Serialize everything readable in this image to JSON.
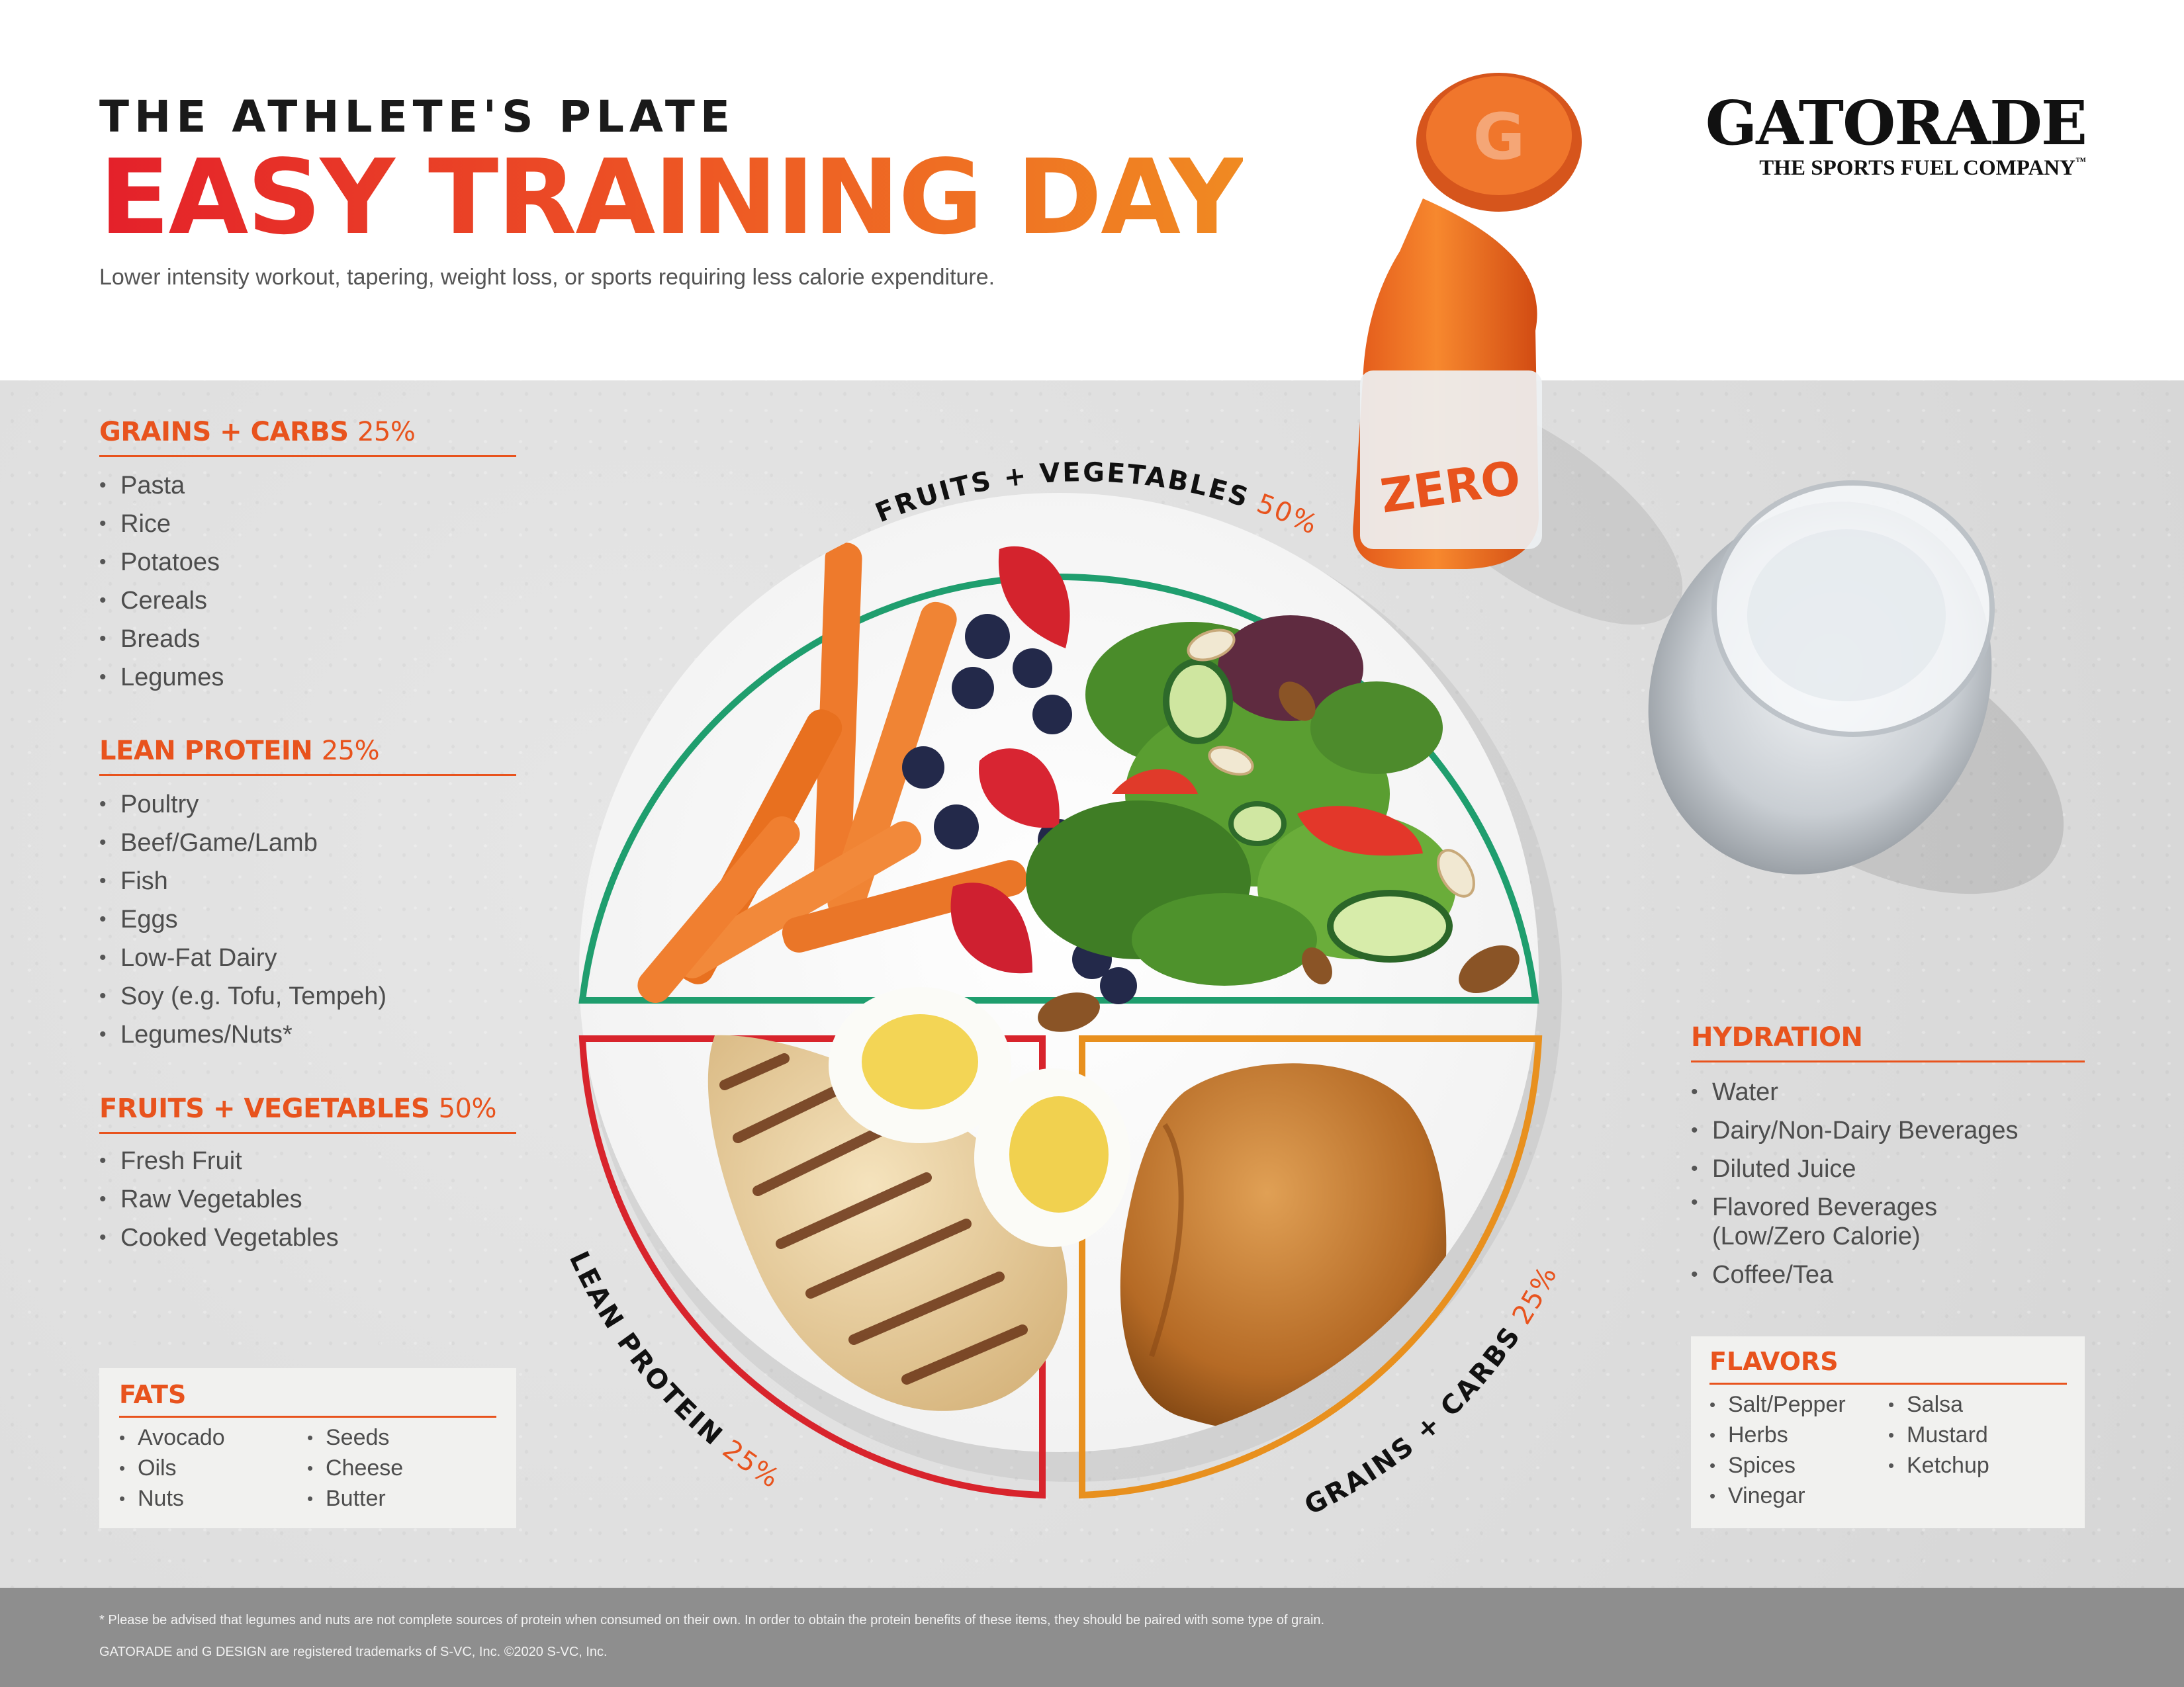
{
  "header": {
    "kicker": "THE ATHLETE'S PLATE",
    "headline": "EASY TRAINING DAY",
    "subline": "Lower intensity workout, tapering, weight loss, or sports requiring less calorie expenditure."
  },
  "brand": {
    "name": "GATORADE",
    "tagline": "THE SPORTS FUEL COMPANY",
    "tm": "™"
  },
  "bottle": {
    "cap_logo": "G",
    "label": "ZERO"
  },
  "plate": {
    "fruits_label": "FRUITS + VEGETABLES",
    "fruits_pct": "50%",
    "protein_label": "LEAN PROTEIN",
    "protein_pct": "25%",
    "grains_label": "GRAINS + CARBS",
    "grains_pct": "25%"
  },
  "sections": {
    "grains": {
      "title": "GRAINS + CARBS",
      "pct": "25%",
      "items": [
        "Pasta",
        "Rice",
        "Potatoes",
        "Cereals",
        "Breads",
        "Legumes"
      ]
    },
    "protein": {
      "title": "LEAN PROTEIN",
      "pct": "25%",
      "items": [
        "Poultry",
        "Beef/Game/Lamb",
        "Fish",
        "Eggs",
        "Low-Fat Dairy",
        "Soy (e.g. Tofu, Tempeh)",
        "Legumes/Nuts*"
      ]
    },
    "fruits": {
      "title": "FRUITS + VEGETABLES",
      "pct": "50%",
      "items": [
        "Fresh Fruit",
        "Raw Vegetables",
        "Cooked Vegetables"
      ]
    },
    "fats": {
      "title": "FATS",
      "col1": [
        "Avocado",
        "Oils",
        "Nuts"
      ],
      "col2": [
        "Seeds",
        "Cheese",
        "Butter"
      ]
    },
    "hydration": {
      "title": "HYDRATION",
      "items": [
        "Water",
        "Dairy/Non-Dairy Beverages",
        "Diluted Juice"
      ],
      "flavored_line1": "Flavored Beverages",
      "flavored_line2": "(Low/Zero Calorie)",
      "last": "Coffee/Tea"
    },
    "flavors": {
      "title": "FLAVORS",
      "col1": [
        "Salt/Pepper",
        "Herbs",
        "Spices",
        "Vinegar"
      ],
      "col2": [
        "Salsa",
        "Mustard",
        "Ketchup"
      ]
    }
  },
  "footer": {
    "note": "* Please be advised that legumes and nuts are not complete sources of protein when consumed on their own. In order to obtain the protein benefits of these items, they should be paired with some type of grain.",
    "trademark": "GATORADE and G DESIGN are registered trademarks of S-VC, Inc. ©2020 S-VC, Inc."
  },
  "colors": {
    "accent": "#e8531d",
    "fruits_ring": "#1f9e6e",
    "protein_ring": "#d8242c",
    "grains_ring": "#e8901e",
    "footer_bg": "#8e8e8e"
  }
}
